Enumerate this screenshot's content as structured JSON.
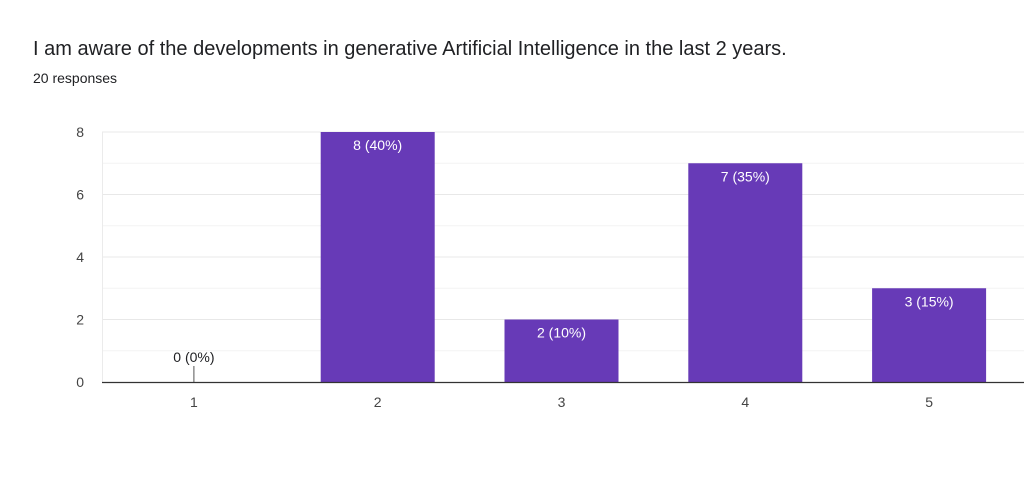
{
  "form": {
    "question": "I am aware of the developments in generative Artificial Intelligence in the last 2 years.",
    "responses": "20 responses"
  },
  "colors": {
    "bar": "#673ab7",
    "bar_label_inside": "#ffffff",
    "bar_label_outside": "#202124",
    "grid": "#e8e8e8",
    "axis": "#333333"
  },
  "chart_data": {
    "type": "bar",
    "categories": [
      "1",
      "2",
      "3",
      "4",
      "5"
    ],
    "values": [
      0,
      8,
      2,
      7,
      3
    ],
    "data_labels": [
      "0 (0%)",
      "8 (40%)",
      "2 (10%)",
      "7 (35%)",
      "3 (15%)"
    ],
    "yticks": [
      0,
      2,
      4,
      6,
      8
    ],
    "ylim": [
      0,
      8
    ],
    "grid": true,
    "minor_grid": true,
    "legend": "none"
  }
}
